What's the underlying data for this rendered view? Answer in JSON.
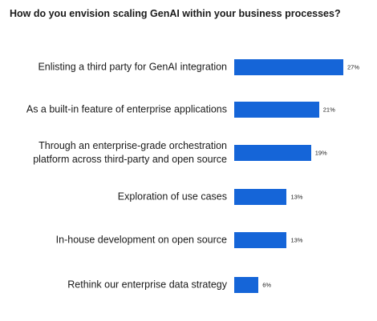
{
  "chart_data": {
    "type": "bar",
    "orientation": "horizontal",
    "title": "How do you envision scaling GenAI within your business processes?",
    "categories": [
      "Enlisting a third party for GenAI integration",
      "As a built-in feature of enterprise applications",
      "Through an enterprise-grade orchestration platform across third-party and open source",
      "Exploration of use cases",
      "In-house development on open source",
      "Rethink our enterprise data strategy"
    ],
    "values": [
      27,
      21,
      19,
      13,
      13,
      6
    ],
    "value_labels": [
      "27%",
      "21%",
      "19%",
      "13%",
      "13%",
      "6%"
    ],
    "unit": "%",
    "bar_color": "#1565d8",
    "grid": false,
    "legend": false
  }
}
